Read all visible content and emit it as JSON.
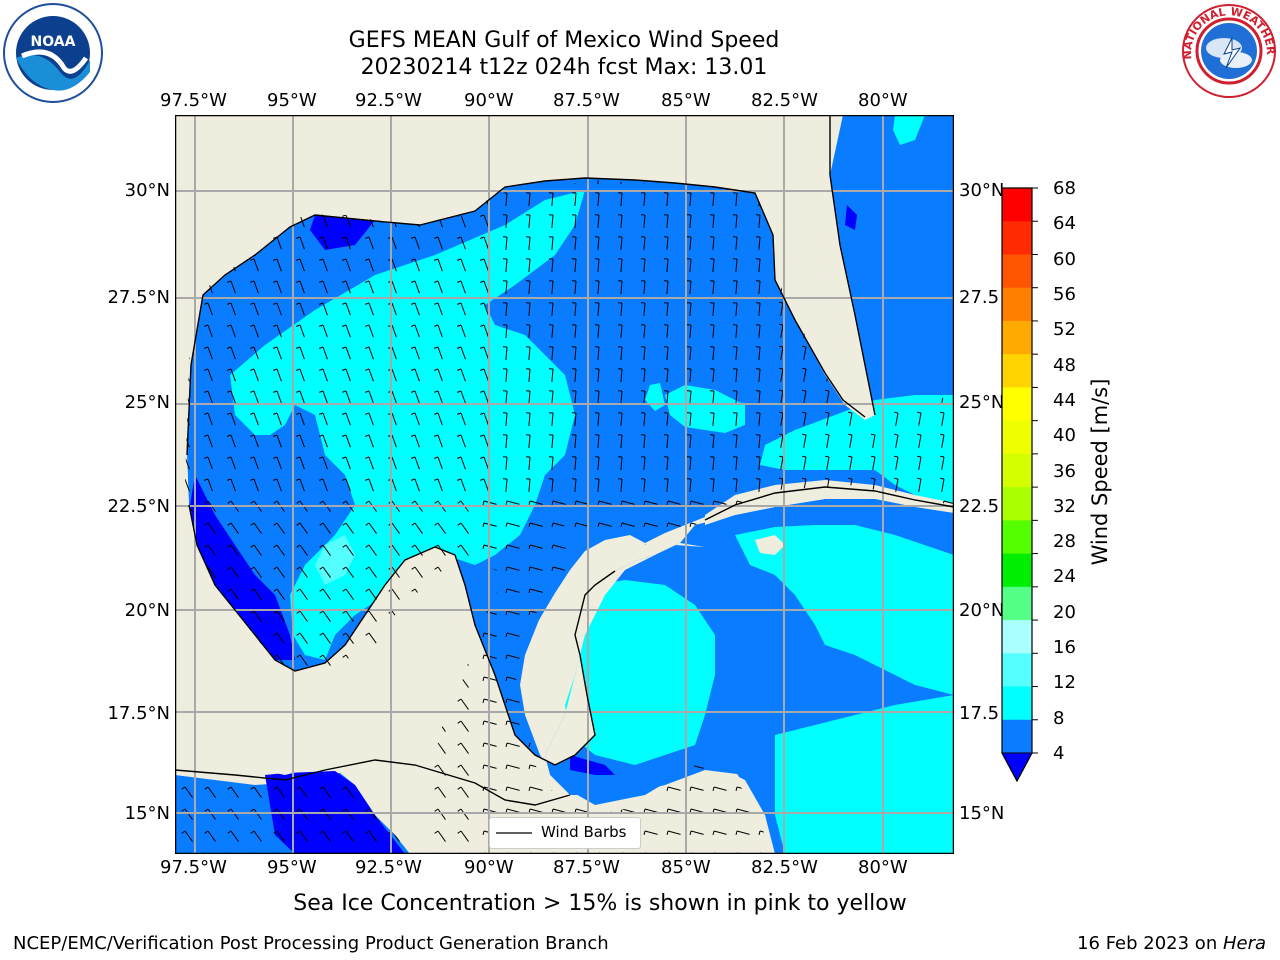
{
  "title": {
    "line1": "GEFS MEAN Gulf of Mexico Wind Speed",
    "line2": "20230214 t12z 024h fcst   Max: 13.01"
  },
  "logos": {
    "noaa": "NOAA",
    "nws": "NATIONAL WEATHER SERVICE"
  },
  "map": {
    "lon_labels": [
      "97.5°W",
      "95°W",
      "92.5°W",
      "90°W",
      "87.5°W",
      "85°W",
      "82.5°W",
      "80°W"
    ],
    "lat_labels": [
      "30°N",
      "27.5°N",
      "25°N",
      "22.5°N",
      "20°N",
      "17.5°N",
      "15°N"
    ],
    "lat_labels_right": [
      "30°N",
      "27.5",
      "25°N",
      "22.5",
      "20°N",
      "17.5",
      "15°N"
    ],
    "lon_range": [
      -98,
      -79
    ],
    "lat_range": [
      14,
      31.6
    ],
    "gridlines": true,
    "legend_label": "Wind Barbs",
    "legend_position": "bottom-center",
    "land_color": "#efedde",
    "wind_speed_zones": [
      {
        "range": "4-8",
        "color": "#0a7cff"
      },
      {
        "range": "8-12",
        "color": "#00ffff"
      },
      {
        "range": "0-4",
        "color": "#0000ff"
      }
    ]
  },
  "colorbar": {
    "label": "Wind Speed [m/s]",
    "tick_labels": [
      "68",
      "64",
      "60",
      "56",
      "52",
      "48",
      "44",
      "40",
      "36",
      "32",
      "28",
      "24",
      "20",
      "16",
      "12",
      "8",
      "4"
    ],
    "colors": [
      "#ff0000",
      "#ff2a00",
      "#ff5500",
      "#ff8000",
      "#ffaa00",
      "#ffd400",
      "#ffff00",
      "#eeff00",
      "#d4ff00",
      "#aaff00",
      "#55ff00",
      "#00ee00",
      "#55ff88",
      "#aaffff",
      "#55ffff",
      "#00ffff",
      "#0a7cff"
    ],
    "extend_color": "#0000ff"
  },
  "footer": {
    "sea_ice_note": "Sea Ice Concentration > 15% is shown in pink to yellow",
    "branch": "NCEP/EMC/Verification Post Processing Product Generation Branch",
    "date": "16 Feb 2023 on ",
    "machine": "Hera"
  }
}
